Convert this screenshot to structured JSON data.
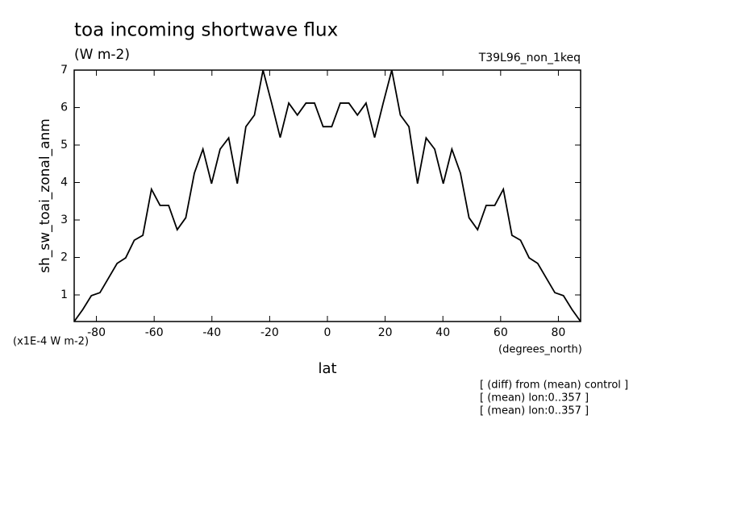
{
  "chart_data": {
    "type": "line",
    "title": "toa incoming shortwave flux",
    "subtitle": "(W m-2)",
    "run_label": "T39L96_non_1keq",
    "y_label": "sh_sw_toai_zonal_anm",
    "y_units": "(x1E-4 W m-2)",
    "x_units": "(degrees_north)",
    "x_label": "lat",
    "notes": [
      "[ (diff) from (mean) control ]",
      "[ (mean) lon:0..357 ]",
      "[ (mean) lon:0..357 ]"
    ],
    "x": [
      -87.7,
      -84.73,
      -81.75,
      -78.78,
      -75.81,
      -72.84,
      -69.86,
      -66.89,
      -63.92,
      -60.94,
      -57.97,
      -55.0,
      -52.02,
      -49.05,
      -46.08,
      -43.11,
      -40.13,
      -37.16,
      -34.19,
      -31.21,
      -28.24,
      -25.27,
      -22.3,
      -19.32,
      -16.35,
      -13.38,
      -10.4,
      -7.43,
      -4.46,
      -1.49,
      1.49,
      4.46,
      7.43,
      10.4,
      13.38,
      16.35,
      19.32,
      22.3,
      25.27,
      28.24,
      31.21,
      34.19,
      37.16,
      40.13,
      43.11,
      46.08,
      49.05,
      52.02,
      55.0,
      57.97,
      60.94,
      63.92,
      66.89,
      69.86,
      72.84,
      75.81,
      78.78,
      81.75,
      84.73,
      87.7
    ],
    "series": [
      {
        "color": "#000000",
        "values": [
          0.29,
          0.61,
          0.98,
          1.06,
          1.45,
          1.84,
          1.99,
          2.46,
          2.59,
          3.82,
          3.39,
          3.39,
          2.74,
          3.06,
          4.25,
          4.89,
          3.97,
          4.89,
          5.19,
          3.97,
          5.49,
          5.8,
          7.0,
          6.12,
          5.2,
          6.12,
          5.8,
          6.12,
          6.12,
          5.49,
          5.49,
          6.12,
          6.12,
          5.8,
          6.12,
          5.2,
          6.12,
          7.0,
          5.8,
          5.49,
          3.97,
          5.19,
          4.89,
          3.97,
          4.89,
          4.25,
          3.06,
          2.74,
          3.39,
          3.39,
          3.82,
          2.59,
          2.46,
          1.99,
          1.84,
          1.45,
          1.06,
          0.98,
          0.61,
          0.29
        ]
      }
    ],
    "xlim": [
      -87.7,
      87.7
    ],
    "ylim": [
      0.29,
      7
    ],
    "xticks": [
      -80,
      -60,
      -40,
      -20,
      0,
      20,
      40,
      60,
      80
    ],
    "yticks": [
      1,
      2,
      3,
      4,
      5,
      6,
      7
    ]
  }
}
